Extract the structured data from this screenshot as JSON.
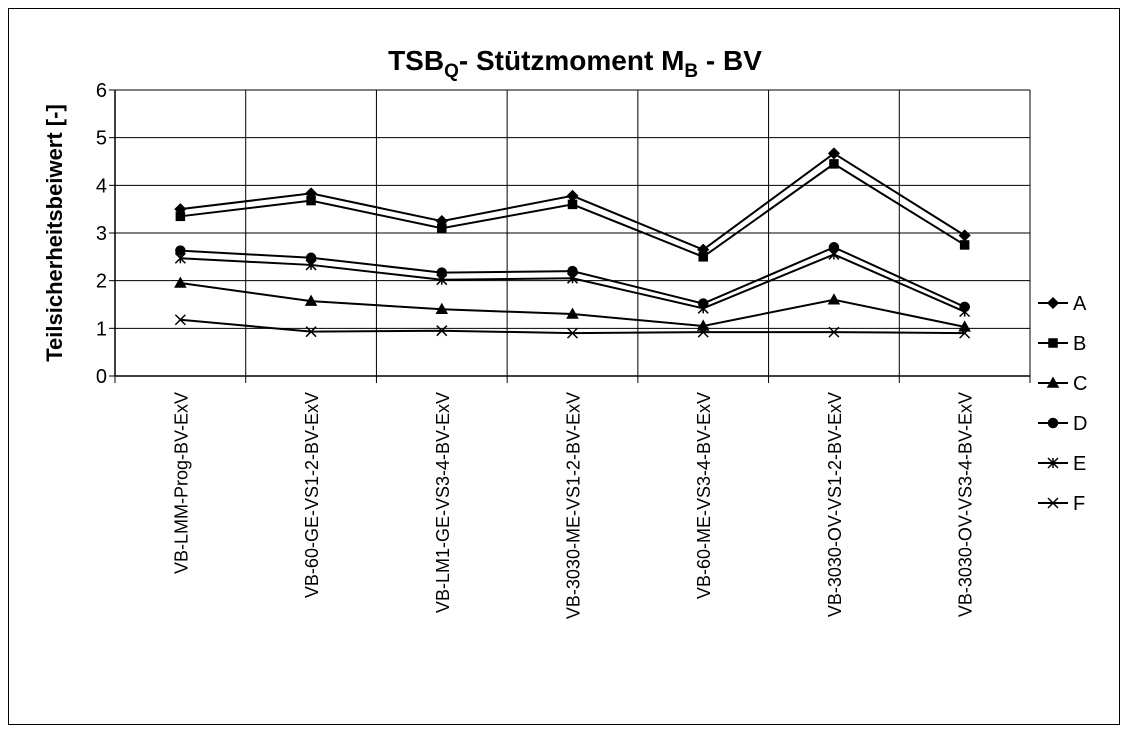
{
  "chart_data": {
    "type": "line",
    "title": [
      {
        "text": "TSB"
      },
      {
        "text": "Q",
        "sub": true
      },
      {
        "text": "- Stützmoment M"
      },
      {
        "text": "B",
        "sub": true
      },
      {
        "text": " - BV"
      }
    ],
    "y_label": "Teilsicherheitsbeiwert [-]",
    "categories": [
      "VB-LMM-Prog-BV-ExV",
      "VB-60-GE-VS1-2-BV-ExV",
      "VB-LM1-GE-VS3-4-BV-ExV",
      "VB-3030-ME-VS1-2-BV-ExV",
      "VB-60-ME-VS3-4-BV-ExV",
      "VB-3030-OV-VS1-2-BV-ExV",
      "VB-3030-OV-VS3-4-BV-ExV"
    ],
    "series": [
      {
        "name": "A",
        "color": "#000000",
        "marker": "diamond",
        "values": [
          3.5,
          3.83,
          3.25,
          3.78,
          2.65,
          4.67,
          2.95
        ]
      },
      {
        "name": "B",
        "color": "#000000",
        "marker": "square",
        "values": [
          3.35,
          3.68,
          3.1,
          3.6,
          2.5,
          4.45,
          2.75
        ]
      },
      {
        "name": "C",
        "color": "#000000",
        "marker": "triangle",
        "values": [
          1.95,
          1.57,
          1.4,
          1.3,
          1.05,
          1.6,
          1.03
        ]
      },
      {
        "name": "D",
        "color": "#000000",
        "marker": "circle",
        "values": [
          2.63,
          2.48,
          2.17,
          2.2,
          1.52,
          2.7,
          1.45
        ]
      },
      {
        "name": "E",
        "color": "#000000",
        "marker": "asterisk",
        "values": [
          2.47,
          2.33,
          2.02,
          2.05,
          1.42,
          2.55,
          1.35
        ]
      },
      {
        "name": "F",
        "color": "#000000",
        "marker": "cross",
        "values": [
          1.18,
          0.93,
          0.95,
          0.9,
          0.92,
          0.92,
          0.9
        ]
      }
    ],
    "ylim": [
      0,
      6
    ],
    "yticks": [
      0,
      1,
      2,
      3,
      4,
      5,
      6
    ],
    "grid": true,
    "legend": "right"
  }
}
